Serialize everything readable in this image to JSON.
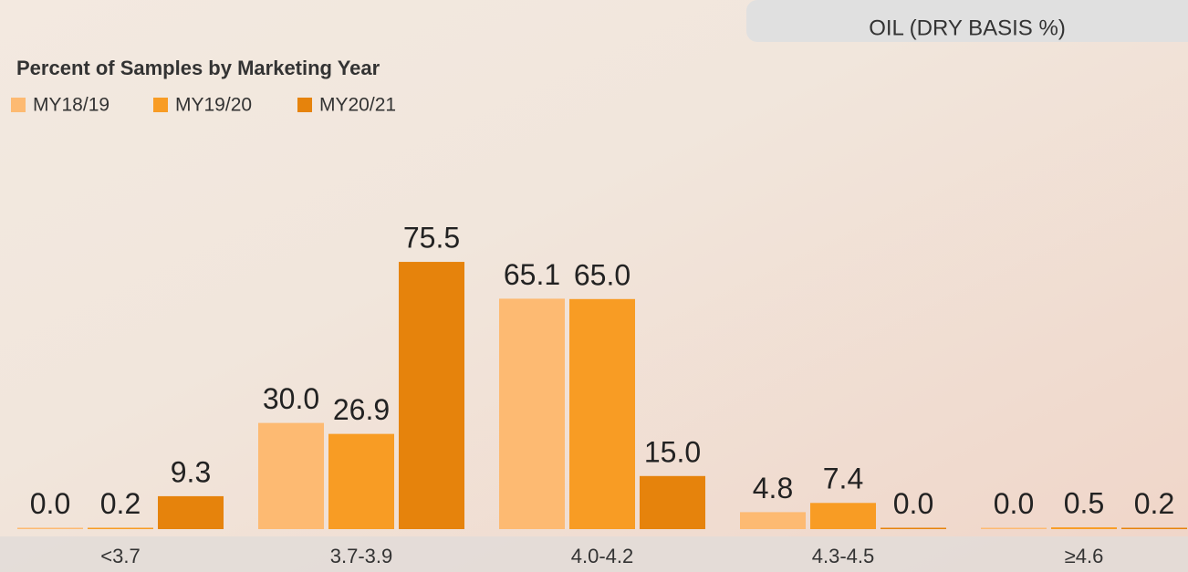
{
  "chart_data": {
    "type": "bar",
    "subtitle": "OIL (DRY BASIS %)",
    "title": "Percent of Samples by Marketing Year",
    "categories": [
      "<3.7",
      "3.7-3.9",
      "4.0-4.2",
      "4.3-4.5",
      "≥4.6"
    ],
    "series": [
      {
        "name": "MY18/19",
        "color": "#fdba72",
        "values": [
          0,
          30,
          65.1,
          4.8,
          0
        ],
        "value_labels": [
          "0.0",
          "30.0",
          "65.1",
          "4.8",
          "0.0"
        ]
      },
      {
        "name": "MY19/20",
        "color": "#f89c24",
        "values": [
          0.2,
          26.9,
          65,
          7.4,
          0.5
        ],
        "value_labels": [
          "0.2",
          "26.9",
          "65.0",
          "7.4",
          "0.5"
        ]
      },
      {
        "name": "MY20/21",
        "color": "#e6830c",
        "values": [
          9.3,
          75.5,
          15,
          0,
          0.2
        ],
        "value_labels": [
          "9.3",
          "75.5",
          "15.0",
          "0.0",
          "0.2"
        ]
      }
    ]
  }
}
